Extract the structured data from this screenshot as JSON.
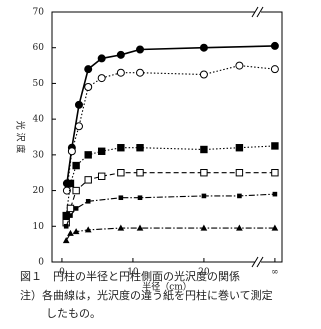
{
  "chart_data": {
    "type": "line",
    "xlabel": "半径（cm）",
    "ylabel": "光 沢 度",
    "xlim": [
      -1.4,
      31
    ],
    "ylim": [
      0,
      70
    ],
    "xticks": [
      0,
      10,
      20,
      {
        "value": 30,
        "label": "∞"
      }
    ],
    "yticks": [
      0,
      10,
      20,
      30,
      40,
      50,
      60,
      70
    ],
    "color": "#000000",
    "series": [
      {
        "marker": "filled-circle",
        "dash": "solid",
        "x": [
          0.7,
          1.4,
          2.4,
          3.7,
          5.6,
          8.3,
          11,
          20,
          30
        ],
        "values": [
          22,
          32,
          44,
          54,
          57,
          58,
          59.5,
          60,
          60.5
        ]
      },
      {
        "marker": "open-circle",
        "dash": "dotted",
        "x": [
          0.7,
          1.4,
          2.4,
          3.7,
          5.6,
          8.3,
          11,
          20,
          25,
          30
        ],
        "values": [
          20,
          31,
          38,
          49,
          51.5,
          53,
          53,
          52.5,
          55,
          54
        ]
      },
      {
        "marker": "filled-square",
        "dash": "dotted",
        "x": [
          0.6,
          1.2,
          2,
          3.7,
          5.6,
          8.3,
          11,
          20,
          25,
          30
        ],
        "values": [
          13,
          22,
          27,
          30,
          31,
          32,
          32,
          31.5,
          32,
          32.5
        ]
      },
      {
        "marker": "open-square",
        "dash": "dashed",
        "x": [
          0.6,
          1.2,
          2,
          3.7,
          5.6,
          8.3,
          11,
          20,
          25,
          30
        ],
        "values": [
          11,
          15,
          20,
          23,
          24,
          25,
          25,
          25,
          25,
          25
        ]
      },
      {
        "marker": "small-square",
        "dash": "dashdot",
        "x": [
          0.6,
          1.2,
          2,
          3.7,
          8.3,
          11,
          20,
          25,
          30
        ],
        "values": [
          10,
          13,
          15,
          17,
          18,
          18,
          18.5,
          18.5,
          19
        ]
      },
      {
        "marker": "triangle",
        "dash": "dashdot",
        "x": [
          0.6,
          1.2,
          2,
          3.7,
          8.3,
          11,
          20,
          25,
          30
        ],
        "values": [
          6,
          8,
          8.5,
          9,
          9.5,
          9.5,
          9.5,
          9.5,
          9.5
        ]
      }
    ],
    "caption": "図１　円柱の半径と円柱側面の光沢度の関係",
    "note": [
      "注）各曲線は，光沢度の違う紙を円柱に巻いて測定",
      "したもの。"
    ]
  }
}
